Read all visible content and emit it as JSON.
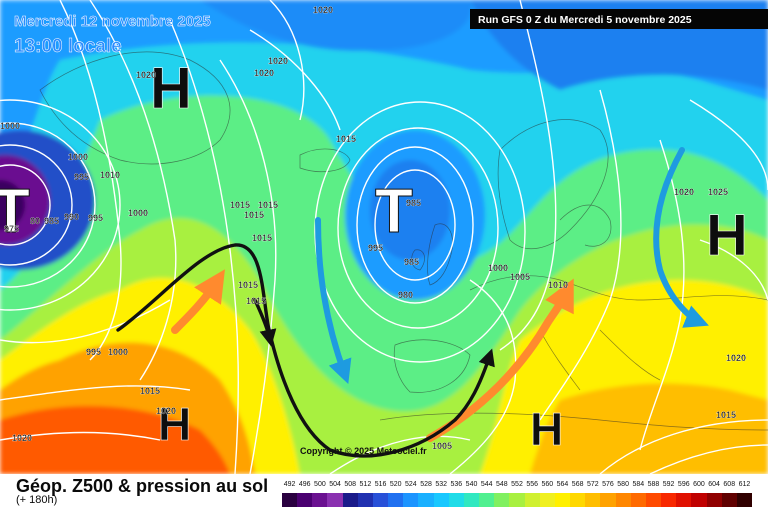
{
  "map": {
    "date_label": "Mercredi 12 novembre 2025",
    "time_label": "13:00 locale",
    "run_label": "Run GFS 0 Z du Mercredi 5 novembre 2025",
    "copyright": "Copyright © 2025 Meteociel.fr",
    "pressure_systems": [
      {
        "type": "H"
      },
      {
        "type": "H"
      },
      {
        "type": "H"
      },
      {
        "type": "H"
      },
      {
        "type": "T"
      },
      {
        "type": "T"
      }
    ],
    "isobar_labels": [
      "1020",
      "1020",
      "1020",
      "1020",
      "1000",
      "1000",
      "995",
      "1010",
      "990",
      "995",
      "80",
      "985",
      "975",
      "1000",
      "1015",
      "1015",
      "1015",
      "1015",
      "1015",
      "1015",
      "1015",
      "985",
      "995",
      "985",
      "980",
      "1000",
      "1005",
      "1010",
      "1020",
      "1025",
      "1020",
      "1015",
      "995",
      "1000",
      "1015",
      "1020",
      "1020",
      "1005"
    ],
    "arrow_colors": {
      "warm": "#ff8a2e",
      "cold": "#1e9be0",
      "jet": "#111111"
    }
  },
  "legend": {
    "title": "Géop. Z500 & pression au sol",
    "subtitle": "(+ 180h)",
    "scale_values": [
      "492",
      "496",
      "500",
      "504",
      "508",
      "512",
      "516",
      "520",
      "524",
      "528",
      "532",
      "536",
      "540",
      "544",
      "548",
      "552",
      "556",
      "560",
      "564",
      "568",
      "572",
      "576",
      "580",
      "584",
      "588",
      "592",
      "596",
      "600",
      "604",
      "608",
      "612"
    ],
    "scale_colors": [
      "#2a0040",
      "#4a0070",
      "#6a1090",
      "#8a30b0",
      "#1a1a8a",
      "#2030b0",
      "#2850d8",
      "#2070f0",
      "#1c94ff",
      "#1ab0ff",
      "#19c8ff",
      "#20dce8",
      "#30e8c0",
      "#50f090",
      "#80f060",
      "#a8f040",
      "#d0f030",
      "#f0f020",
      "#fff000",
      "#ffd800",
      "#ffbe00",
      "#ffa200",
      "#ff8600",
      "#ff6a00",
      "#ff4a00",
      "#f82800",
      "#e01000",
      "#c00000",
      "#900000",
      "#600000",
      "#300000"
    ]
  }
}
